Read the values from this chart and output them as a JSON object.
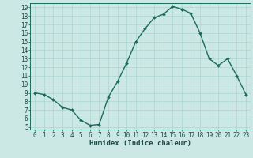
{
  "hours": [
    0,
    1,
    2,
    3,
    4,
    5,
    6,
    7,
    8,
    9,
    10,
    11,
    12,
    13,
    14,
    15,
    16,
    17,
    18,
    19,
    20,
    21,
    22,
    23
  ],
  "values": [
    9.0,
    8.8,
    8.2,
    7.3,
    7.0,
    5.8,
    5.2,
    5.3,
    8.5,
    10.3,
    12.5,
    15.0,
    16.5,
    17.8,
    18.2,
    19.1,
    18.8,
    18.3,
    16.0,
    13.0,
    12.2,
    13.0,
    11.0,
    8.8
  ],
  "xlabel": "Humidex (Indice chaleur)",
  "xlim": [
    -0.5,
    23.5
  ],
  "ylim": [
    4.7,
    19.5
  ],
  "yticks": [
    5,
    6,
    7,
    8,
    9,
    10,
    11,
    12,
    13,
    14,
    15,
    16,
    17,
    18,
    19
  ],
  "xticks": [
    0,
    1,
    2,
    3,
    4,
    5,
    6,
    7,
    8,
    9,
    10,
    11,
    12,
    13,
    14,
    15,
    16,
    17,
    18,
    19,
    20,
    21,
    22,
    23
  ],
  "line_color": "#1a6b5e",
  "marker_color": "#1a6b5e",
  "bg_color": "#cce8e4",
  "grid_color": "#aad4d0",
  "font_color": "#1a4a44",
  "xlabel_fontsize": 6.5,
  "tick_fontsize": 5.5,
  "linewidth": 1.0,
  "markersize": 2.0
}
